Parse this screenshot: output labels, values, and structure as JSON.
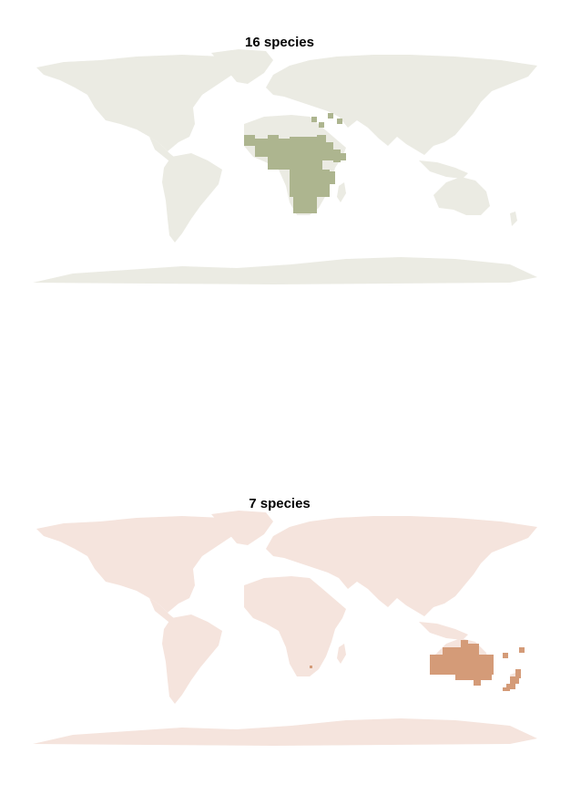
{
  "maps": [
    {
      "title": "16 species",
      "land_color": "#ebebe3",
      "range_color": "#adb58f",
      "range_region": "Sub-Saharan Africa"
    },
    {
      "title": "7 species",
      "land_color": "#f5e4dd",
      "range_color": "#d49b78",
      "range_region": "Australia and New Zealand"
    }
  ]
}
